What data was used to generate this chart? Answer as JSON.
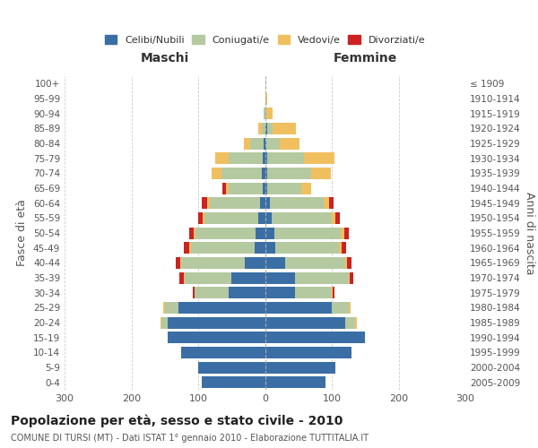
{
  "age_groups": [
    "0-4",
    "5-9",
    "10-14",
    "15-19",
    "20-24",
    "25-29",
    "30-34",
    "35-39",
    "40-44",
    "45-49",
    "50-54",
    "55-59",
    "60-64",
    "65-69",
    "70-74",
    "75-79",
    "80-84",
    "85-89",
    "90-94",
    "95-99",
    "100+"
  ],
  "birth_years": [
    "2005-2009",
    "2000-2004",
    "1995-1999",
    "1990-1994",
    "1985-1989",
    "1980-1984",
    "1975-1979",
    "1970-1974",
    "1965-1969",
    "1960-1964",
    "1955-1959",
    "1950-1954",
    "1945-1949",
    "1940-1944",
    "1935-1939",
    "1930-1934",
    "1925-1929",
    "1920-1924",
    "1915-1919",
    "1910-1914",
    "≤ 1909"
  ],
  "maschi": {
    "celibi": [
      95,
      100,
      125,
      145,
      145,
      130,
      55,
      50,
      30,
      16,
      14,
      10,
      8,
      4,
      5,
      4,
      2,
      0,
      0,
      0,
      0
    ],
    "coniugati": [
      0,
      0,
      0,
      0,
      10,
      20,
      50,
      70,
      95,
      95,
      90,
      80,
      75,
      50,
      60,
      50,
      20,
      5,
      2,
      0,
      0
    ],
    "vedovi": [
      0,
      0,
      0,
      0,
      2,
      2,
      1,
      2,
      2,
      3,
      3,
      3,
      4,
      5,
      15,
      20,
      10,
      5,
      0,
      0,
      0
    ],
    "divorziati": [
      0,
      0,
      0,
      0,
      0,
      0,
      2,
      6,
      6,
      7,
      7,
      7,
      8,
      5,
      0,
      0,
      0,
      0,
      0,
      0,
      0
    ]
  },
  "femmine": {
    "nubili": [
      90,
      105,
      130,
      150,
      120,
      100,
      45,
      45,
      30,
      16,
      14,
      10,
      8,
      4,
      4,
      4,
      2,
      3,
      0,
      0,
      0
    ],
    "coniugate": [
      0,
      0,
      0,
      0,
      15,
      25,
      55,
      80,
      90,
      95,
      100,
      90,
      80,
      50,
      65,
      55,
      20,
      8,
      2,
      1,
      0
    ],
    "vedove": [
      0,
      0,
      0,
      0,
      2,
      3,
      2,
      2,
      3,
      4,
      5,
      5,
      8,
      15,
      30,
      45,
      30,
      35,
      10,
      3,
      0
    ],
    "divorziate": [
      0,
      0,
      0,
      0,
      0,
      0,
      2,
      5,
      7,
      7,
      7,
      7,
      7,
      0,
      0,
      0,
      0,
      0,
      0,
      0,
      0
    ]
  },
  "colors": {
    "celibi_nubili": "#3a6ea5",
    "coniugati": "#b5c9a0",
    "vedovi": "#f0c060",
    "divorziati": "#cc2222"
  },
  "xlim": 300,
  "title": "Popolazione per età, sesso e stato civile - 2010",
  "subtitle": "COMUNE DI TURSI (MT) - Dati ISTAT 1° gennaio 2010 - Elaborazione TUTTITALIA.IT",
  "ylabel_left": "Fasce di età",
  "ylabel_right": "Anni di nascita",
  "xlabel_maschi": "Maschi",
  "xlabel_femmine": "Femmine",
  "bg_color": "#ffffff",
  "grid_color": "#cccccc"
}
